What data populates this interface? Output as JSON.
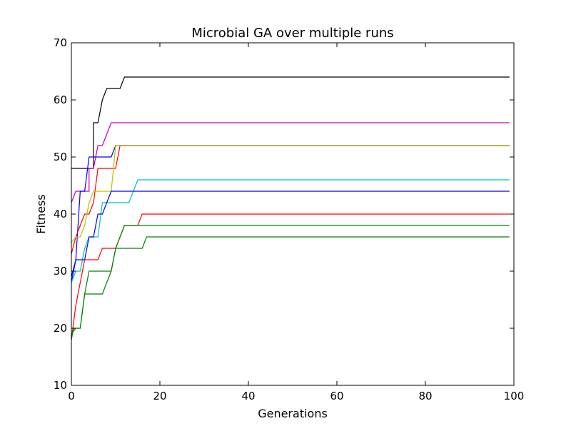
{
  "chart_data": {
    "type": "line",
    "title": "Microbial GA over multiple runs",
    "xlabel": "Generations",
    "ylabel": "Fitness",
    "xlim": [
      0,
      100
    ],
    "ylim": [
      10,
      70
    ],
    "x_ticks": [
      0,
      20,
      40,
      60,
      80,
      100
    ],
    "y_ticks": [
      10,
      20,
      30,
      40,
      50,
      60,
      70
    ],
    "grid": false,
    "legend": "none",
    "x_max_data": 99,
    "series": [
      {
        "color": "#000000",
        "points": [
          [
            0,
            48
          ],
          [
            5,
            48
          ],
          [
            5,
            56
          ],
          [
            6,
            56
          ],
          [
            7,
            60
          ],
          [
            8,
            62
          ],
          [
            11,
            62
          ],
          [
            12,
            64
          ],
          [
            99,
            64
          ]
        ]
      },
      {
        "color": "#bf00bf",
        "points": [
          [
            0,
            42
          ],
          [
            1,
            44
          ],
          [
            4,
            44
          ],
          [
            4,
            48
          ],
          [
            5,
            48
          ],
          [
            6,
            52
          ],
          [
            7,
            52
          ],
          [
            9,
            56
          ],
          [
            99,
            56
          ]
        ]
      },
      {
        "color": "#0000ff",
        "points": [
          [
            0,
            28
          ],
          [
            1,
            32
          ],
          [
            2,
            44
          ],
          [
            3,
            44
          ],
          [
            4,
            50
          ],
          [
            9,
            50
          ],
          [
            10,
            52
          ],
          [
            99,
            52
          ]
        ]
      },
      {
        "color": "#ff0000",
        "points": [
          [
            0,
            33
          ],
          [
            1,
            36
          ],
          [
            2,
            38
          ],
          [
            3,
            40
          ],
          [
            4,
            40
          ],
          [
            5,
            42
          ],
          [
            6,
            48
          ],
          [
            10,
            48
          ],
          [
            11,
            52
          ],
          [
            99,
            52
          ]
        ]
      },
      {
        "color": "#bfbf00",
        "points": [
          [
            0,
            35
          ],
          [
            1,
            36
          ],
          [
            2,
            36
          ],
          [
            3,
            38
          ],
          [
            4,
            42
          ],
          [
            5,
            44
          ],
          [
            9,
            44
          ],
          [
            10,
            52
          ],
          [
            99,
            52
          ]
        ]
      },
      {
        "color": "#00bfbf",
        "points": [
          [
            0,
            28
          ],
          [
            1,
            30
          ],
          [
            2,
            30
          ],
          [
            3,
            34
          ],
          [
            4,
            36
          ],
          [
            6,
            36
          ],
          [
            7,
            42
          ],
          [
            13,
            42
          ],
          [
            15,
            46
          ],
          [
            99,
            46
          ]
        ]
      },
      {
        "color": "#0000ff",
        "points": [
          [
            0,
            29
          ],
          [
            1,
            32
          ],
          [
            3,
            32
          ],
          [
            4,
            36
          ],
          [
            5,
            36
          ],
          [
            6,
            40
          ],
          [
            7,
            40
          ],
          [
            9,
            44
          ],
          [
            99,
            44
          ]
        ]
      },
      {
        "color": "#ff0000",
        "points": [
          [
            0,
            18
          ],
          [
            1,
            24
          ],
          [
            2,
            28
          ],
          [
            3,
            32
          ],
          [
            6,
            32
          ],
          [
            7,
            34
          ],
          [
            10,
            34
          ],
          [
            12,
            38
          ],
          [
            15,
            38
          ],
          [
            16,
            40
          ],
          [
            99,
            40
          ]
        ]
      },
      {
        "color": "#008000",
        "points": [
          [
            0,
            19
          ],
          [
            1,
            20
          ],
          [
            2,
            20
          ],
          [
            3,
            26
          ],
          [
            7,
            26
          ],
          [
            9,
            30
          ],
          [
            10,
            34
          ],
          [
            12,
            38
          ],
          [
            99,
            38
          ]
        ]
      },
      {
        "color": "#008000",
        "points": [
          [
            0,
            18
          ],
          [
            0.5,
            20
          ],
          [
            2,
            20
          ],
          [
            3,
            26
          ],
          [
            4,
            30
          ],
          [
            9,
            30
          ],
          [
            10,
            34
          ],
          [
            16,
            34
          ],
          [
            17,
            36
          ],
          [
            99,
            36
          ]
        ]
      }
    ]
  }
}
